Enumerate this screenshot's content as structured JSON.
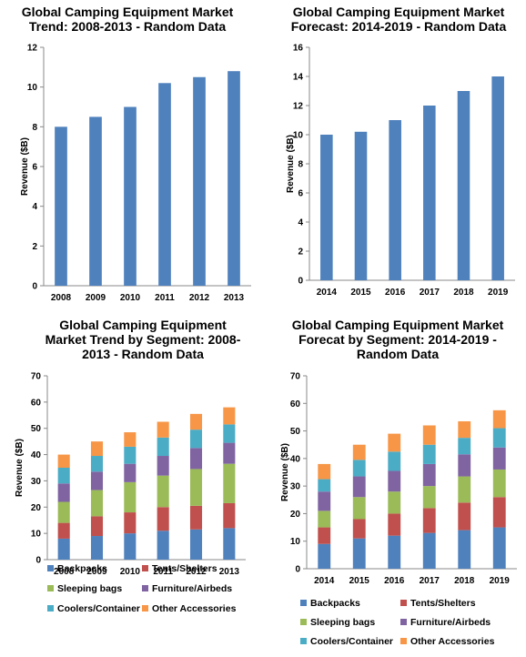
{
  "colors": {
    "bar": "#4F81BD",
    "backpacks": "#4F81BD",
    "tents": "#C0504D",
    "sleeping": "#9BBB59",
    "furniture": "#8064A2",
    "coolers": "#4BACC6",
    "other": "#F79646",
    "axis": "#888888"
  },
  "chart_data": [
    {
      "type": "bar",
      "title": "Global Camping Equipment Market Trend: 2008-2013 - Random Data",
      "title_lines": [
        "Global Camping Equipment Market",
        "Trend: 2008-2013 - Random Data"
      ],
      "ylabel": "Revenue ($B)",
      "xlabel": "",
      "ylim": [
        0,
        12
      ],
      "yticks": [
        0,
        2,
        4,
        6,
        8,
        10,
        12
      ],
      "ytick_labels": [
        "0",
        "2",
        "4",
        "6",
        "8",
        "10",
        "12"
      ],
      "categories": [
        "2008",
        "2009",
        "2010",
        "2011",
        "2012",
        "2013"
      ],
      "values": [
        8.0,
        8.5,
        9.0,
        10.2,
        10.5,
        10.8
      ],
      "grid": false
    },
    {
      "type": "bar",
      "title": "Global Camping Equipment Market Forecast: 2014-2019 - Random Data",
      "title_lines": [
        "Global Camping Equipment Market",
        "Forecast: 2014-2019 - Random Data"
      ],
      "ylabel": "Revenue ($B)",
      "xlabel": "",
      "ylim": [
        0,
        16
      ],
      "yticks": [
        0,
        2,
        4,
        6,
        8,
        10,
        12,
        14,
        16
      ],
      "ytick_labels": [
        "0",
        "2",
        "4",
        "6",
        "8",
        "10",
        "12",
        "14",
        "16"
      ],
      "categories": [
        "2014",
        "2015",
        "2016",
        "2017",
        "2018",
        "2019"
      ],
      "values": [
        10.0,
        10.2,
        11.0,
        12.0,
        13.0,
        14.0
      ],
      "grid": false
    },
    {
      "type": "bar",
      "stacked": true,
      "title": "Global Camping Equipment Market Trend by Segment: 2008-2013 - Random Data",
      "title_lines": [
        "Global Camping Equipment",
        "Market Trend by Segment: 2008-",
        "2013 - Random Data"
      ],
      "ylabel": "Revenue ($B)",
      "xlabel": "",
      "ylim": [
        0,
        70
      ],
      "yticks": [
        0,
        10,
        20,
        30,
        40,
        50,
        60,
        70
      ],
      "ytick_labels": [
        "0",
        "10",
        "20",
        "30",
        "40",
        "50",
        "60",
        "70"
      ],
      "categories": [
        "2008",
        "2009",
        "2010",
        "2011",
        "2012",
        "2013"
      ],
      "legend": "bottom",
      "grid": false,
      "series": [
        {
          "name": "Backpacks",
          "color_key": "backpacks",
          "values": [
            8.0,
            9.0,
            10.0,
            11.0,
            11.5,
            12.0
          ]
        },
        {
          "name": "Tents/Shelters",
          "color_key": "tents",
          "values": [
            6.0,
            7.5,
            8.0,
            9.0,
            9.0,
            9.5
          ]
        },
        {
          "name": "Sleeping bags",
          "color_key": "sleeping",
          "values": [
            8.0,
            10.0,
            11.5,
            12.0,
            14.0,
            15.0
          ]
        },
        {
          "name": "Furniture/Airbeds",
          "color_key": "furniture",
          "values": [
            7.0,
            7.0,
            7.0,
            7.5,
            8.0,
            8.0
          ]
        },
        {
          "name": "Coolers/Container",
          "color_key": "coolers",
          "values": [
            6.0,
            6.0,
            6.5,
            7.0,
            7.0,
            7.0
          ]
        },
        {
          "name": "Other Accessories",
          "color_key": "other",
          "values": [
            5.0,
            5.5,
            5.5,
            6.0,
            6.0,
            6.5
          ]
        }
      ]
    },
    {
      "type": "bar",
      "stacked": true,
      "title": "Global Camping Equipment Market Forecat by Segment: 2014-2019 - Random Data",
      "title_lines": [
        "Global Camping Equipment Market",
        "Forecat by Segment: 2014-2019 -",
        "Random Data"
      ],
      "ylabel": "Revenue ($B)",
      "xlabel": "",
      "ylim": [
        0,
        70
      ],
      "yticks": [
        0,
        10,
        20,
        30,
        40,
        50,
        60,
        70
      ],
      "ytick_labels": [
        "0",
        "10",
        "20",
        "30",
        "40",
        "50",
        "60",
        "70"
      ],
      "categories": [
        "2014",
        "2015",
        "2016",
        "2017",
        "2018",
        "2019"
      ],
      "legend": "bottom",
      "grid": false,
      "series": [
        {
          "name": "Backpacks",
          "color_key": "backpacks",
          "values": [
            9.0,
            11.0,
            12.0,
            13.0,
            14.0,
            15.0
          ]
        },
        {
          "name": "Tents/Shelters",
          "color_key": "tents",
          "values": [
            6.0,
            7.0,
            8.0,
            9.0,
            10.0,
            11.0
          ]
        },
        {
          "name": "Sleeping bags",
          "color_key": "sleeping",
          "values": [
            6.0,
            8.0,
            8.0,
            8.0,
            9.5,
            10.0
          ]
        },
        {
          "name": "Furniture/Airbeds",
          "color_key": "furniture",
          "values": [
            7.0,
            7.5,
            7.5,
            8.0,
            8.0,
            8.0
          ]
        },
        {
          "name": "Coolers/Container",
          "color_key": "coolers",
          "values": [
            4.5,
            6.0,
            7.0,
            7.0,
            6.0,
            7.0
          ]
        },
        {
          "name": "Other Accessories",
          "color_key": "other",
          "values": [
            5.5,
            5.5,
            6.5,
            7.0,
            6.0,
            6.5
          ]
        }
      ]
    }
  ]
}
